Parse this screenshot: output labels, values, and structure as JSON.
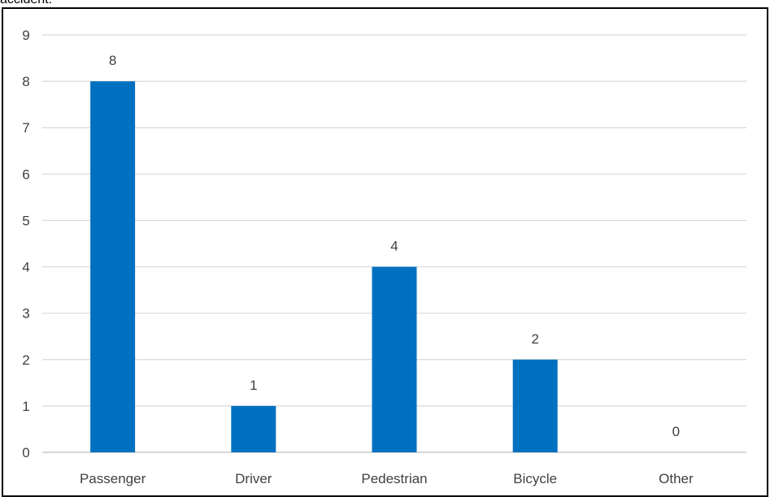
{
  "caption": "accident.",
  "colors": {
    "bar": "#0070c0",
    "grid": "#d9d9d9",
    "axis": "#bfbfbf",
    "text": "#404040",
    "border": "#000000"
  },
  "chart_data": {
    "type": "bar",
    "categories": [
      "Passenger",
      "Driver",
      "Pedestrian",
      "Bicycle",
      "Other"
    ],
    "values": [
      8,
      1,
      4,
      2,
      0
    ],
    "data_labels": [
      "8",
      "1",
      "4",
      "2",
      "0"
    ],
    "title": "",
    "xlabel": "",
    "ylabel": "",
    "ylim": [
      0,
      9
    ],
    "yticks": [
      "0",
      "1",
      "2",
      "3",
      "4",
      "5",
      "6",
      "7",
      "8",
      "9"
    ],
    "grid": true,
    "legend": "none"
  }
}
